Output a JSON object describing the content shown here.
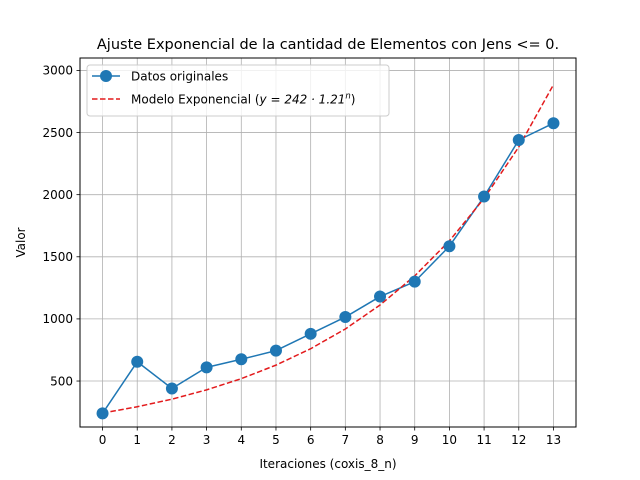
{
  "chart_data": {
    "type": "line",
    "title": "Ajuste Exponencial de la cantidad de Elementos con Jens <= 0.",
    "xlabel": "Iteraciones (coxis_8_n)",
    "ylabel": "Valor",
    "xlim": [
      -0.65,
      13.65
    ],
    "ylim": [
      130,
      3100
    ],
    "xticks": [
      0,
      1,
      2,
      3,
      4,
      5,
      6,
      7,
      8,
      9,
      10,
      11,
      12,
      13
    ],
    "yticks": [
      500,
      1000,
      1500,
      2000,
      2500,
      3000
    ],
    "grid": true,
    "legend_position": "top-left",
    "series": [
      {
        "name": "Datos originales",
        "style": "solid-line-circle-markers",
        "color": "#1f77b4",
        "x": [
          0,
          1,
          2,
          3,
          4,
          5,
          6,
          7,
          8,
          9,
          10,
          11,
          12,
          13
        ],
        "values": [
          240,
          655,
          440,
          610,
          675,
          745,
          880,
          1015,
          1180,
          1300,
          1585,
          1985,
          2440,
          2575
        ]
      },
      {
        "name": "Modelo Exponencial ($y = 242 \\cdot 1.21^{n}$)",
        "legend_prefix": "Modelo Exponencial (",
        "legend_math": "y = 242 · 1.21",
        "legend_exp": "n",
        "legend_suffix": ")",
        "style": "dashed-line",
        "color": "#e31a1c",
        "x": [
          0,
          1,
          2,
          3,
          4,
          5,
          6,
          7,
          8,
          9,
          10,
          11,
          12,
          13
        ],
        "values": [
          242,
          293,
          354,
          429,
          519,
          628,
          760,
          919,
          1112,
          1346,
          1628,
          1970,
          2384,
          2885
        ]
      }
    ]
  }
}
